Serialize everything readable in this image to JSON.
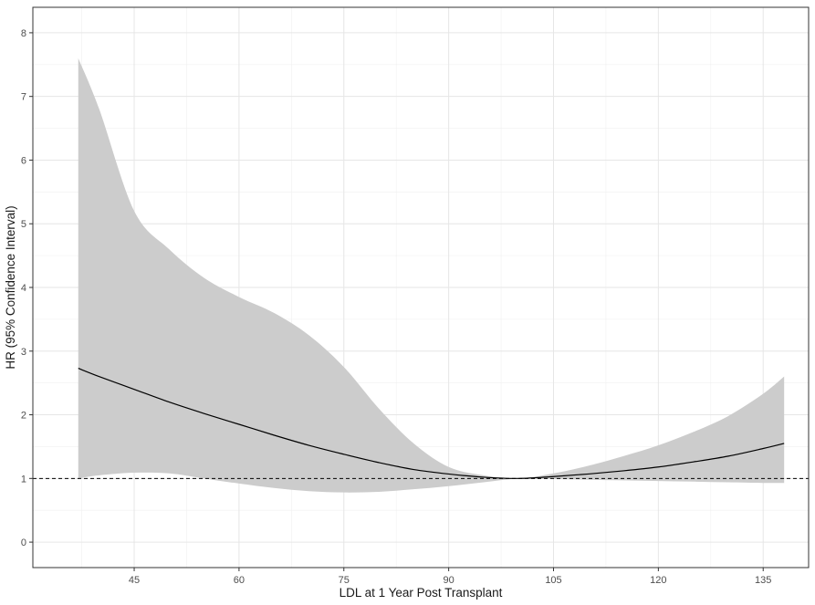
{
  "chart_data": {
    "type": "line",
    "title": "",
    "xlabel": "LDL at 1 Year Post Transplant",
    "ylabel": "HR (95% Confidence Interval)",
    "xlim": [
      30.5,
      141.5
    ],
    "ylim": [
      -0.4,
      8.4
    ],
    "x_ticks": [
      45,
      60,
      75,
      90,
      105,
      120,
      135
    ],
    "x_tick_labels": [
      "45",
      "60",
      "75",
      "90",
      "105",
      "120",
      "135"
    ],
    "y_ticks": [
      0,
      1,
      2,
      3,
      4,
      5,
      6,
      7,
      8
    ],
    "y_tick_labels": [
      "0",
      "1",
      "2",
      "3",
      "4",
      "5",
      "6",
      "7",
      "8"
    ],
    "grid": true,
    "reference_line": {
      "y": 1,
      "style": "dashed"
    },
    "series": [
      {
        "type": "line",
        "color": "#000000",
        "x": [
          37,
          40,
          45,
          50,
          55,
          60,
          65,
          70,
          75,
          80,
          85,
          90,
          95,
          100,
          105,
          110,
          115,
          120,
          125,
          130,
          135,
          138
        ],
        "y": [
          2.73,
          2.6,
          2.4,
          2.2,
          2.02,
          1.85,
          1.68,
          1.52,
          1.38,
          1.25,
          1.14,
          1.07,
          1.02,
          1.0,
          1.03,
          1.07,
          1.12,
          1.18,
          1.26,
          1.35,
          1.47,
          1.55
        ]
      },
      {
        "type": "band",
        "color": "#cccccc",
        "x": [
          37,
          40,
          45,
          50,
          55,
          60,
          65,
          70,
          75,
          80,
          85,
          90,
          95,
          100,
          105,
          110,
          115,
          120,
          125,
          130,
          135,
          138
        ],
        "lower": [
          1.0,
          1.05,
          1.09,
          1.08,
          1.0,
          0.92,
          0.85,
          0.8,
          0.78,
          0.79,
          0.83,
          0.88,
          0.94,
          1.0,
          0.99,
          0.98,
          0.97,
          0.96,
          0.95,
          0.94,
          0.93,
          0.93
        ],
        "upper": [
          7.6,
          6.8,
          5.2,
          4.6,
          4.15,
          3.85,
          3.6,
          3.25,
          2.75,
          2.1,
          1.55,
          1.18,
          1.05,
          1.0,
          1.08,
          1.2,
          1.35,
          1.52,
          1.73,
          1.98,
          2.33,
          2.6
        ]
      }
    ]
  }
}
